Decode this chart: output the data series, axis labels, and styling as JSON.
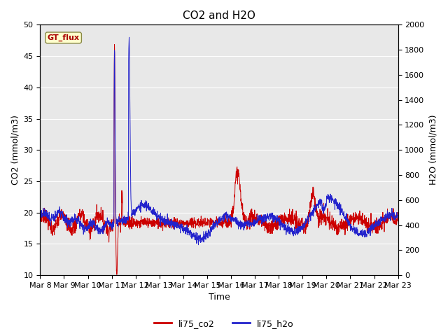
{
  "title": "CO2 and H2O",
  "ylabel_left": "CO2 (mmol/m3)",
  "ylabel_right": "H2O (mmol/m3)",
  "xlabel": "Time",
  "ylim_left": [
    10,
    50
  ],
  "ylim_right": [
    0,
    2000
  ],
  "yticks_left": [
    10,
    15,
    20,
    25,
    30,
    35,
    40,
    45,
    50
  ],
  "yticks_right": [
    0,
    200,
    400,
    600,
    800,
    1000,
    1200,
    1400,
    1600,
    1800,
    2000
  ],
  "xtick_labels": [
    "Mar 8",
    "Mar 9",
    "Mar 10",
    "Mar 11",
    "Mar 12",
    "Mar 13",
    "Mar 14",
    "Mar 15",
    "Mar 16",
    "Mar 17",
    "Mar 18",
    "Mar 19",
    "Mar 20",
    "Mar 21",
    "Mar 22",
    "Mar 23"
  ],
  "color_co2": "#cc0000",
  "color_h2o": "#2222cc",
  "legend_label_co2": "li75_co2",
  "legend_label_h2o": "li75_h2o",
  "annotation_text": "GT_flux",
  "plot_bg_color": "#e8e8e8",
  "fig_bg_color": "#ffffff",
  "title_fontsize": 11,
  "label_fontsize": 9,
  "tick_fontsize": 8,
  "grid_color": "#ffffff",
  "n_days": 15.5,
  "n_points": 2000
}
